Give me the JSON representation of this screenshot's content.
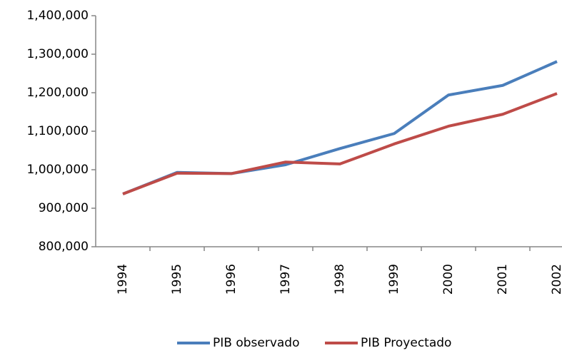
{
  "chart_data": {
    "type": "line",
    "categories": [
      "1994",
      "1995",
      "1996",
      "1997",
      "1998",
      "1999",
      "2000",
      "2001",
      "2002"
    ],
    "series": [
      {
        "name": "PIB observado",
        "color": "#4a7ebb",
        "values": [
          937000,
          993000,
          990000,
          1013000,
          1055000,
          1094000,
          1194000,
          1219000,
          1281000
        ]
      },
      {
        "name": "PIB Proyectado",
        "color": "#be4b48",
        "values": [
          937000,
          991000,
          990000,
          1020000,
          1015000,
          1067000,
          1113000,
          1144000,
          1198000
        ]
      }
    ],
    "ylim": [
      800000,
      1400000
    ],
    "yticks": [
      {
        "value": 800000,
        "label": "800,000"
      },
      {
        "value": 900000,
        "label": "900,000"
      },
      {
        "value": 1000000,
        "label": "1,000,000"
      },
      {
        "value": 1100000,
        "label": "1,100,000"
      },
      {
        "value": 1200000,
        "label": "1,200,000"
      },
      {
        "value": 1300000,
        "label": "1,300,000"
      },
      {
        "value": 1400000,
        "label": "1,400,000"
      }
    ],
    "legend": "bottom"
  }
}
